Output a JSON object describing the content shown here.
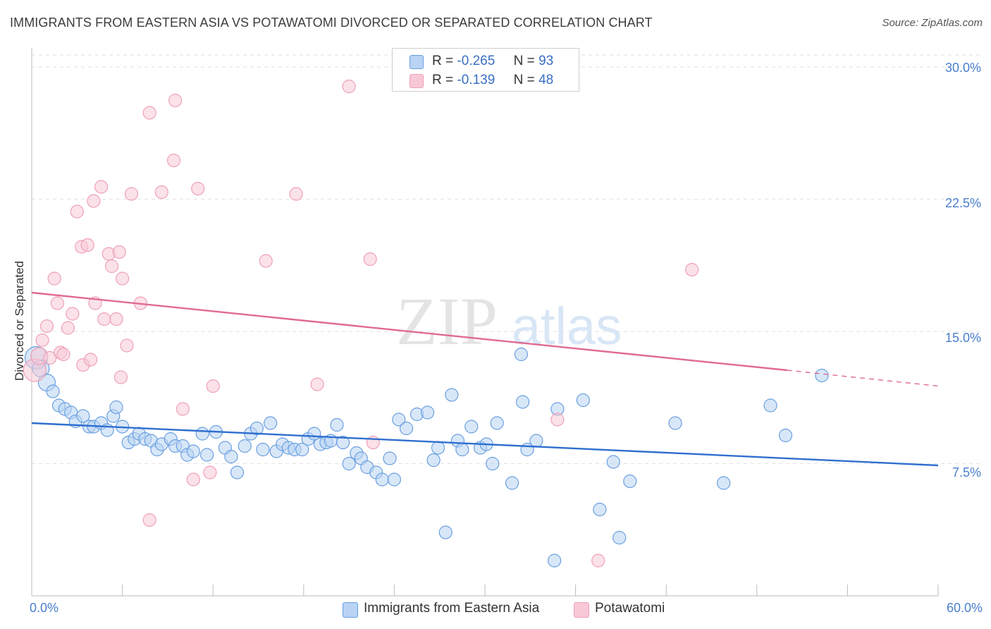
{
  "header": {
    "title": "IMMIGRANTS FROM EASTERN ASIA VS POTAWATOMI DIVORCED OR SEPARATED CORRELATION CHART",
    "source": "Source: ZipAtlas.com"
  },
  "watermark": {
    "zip": "ZIP",
    "atlas": "atlas"
  },
  "legend_top": {
    "rows": [
      {
        "r_label": "R =",
        "r_value": "-0.265",
        "n_label": "N =",
        "n_value": "93"
      },
      {
        "r_label": "R =",
        "r_value": "-0.139",
        "n_label": "N =",
        "n_value": "48"
      }
    ]
  },
  "chart_data": {
    "type": "scatter",
    "title": "IMMIGRANTS FROM EASTERN ASIA VS POTAWATOMI DIVORCED OR SEPARATED CORRELATION CHART",
    "xlabel": "",
    "ylabel": "Divorced or Separated",
    "xlim": [
      0,
      60
    ],
    "ylim": [
      0,
      31
    ],
    "x_tick_labels": [
      "0.0%",
      "60.0%"
    ],
    "y_ticks": [
      7.5,
      15.0,
      22.5,
      30.0
    ],
    "y_tick_labels": [
      "7.5%",
      "15.0%",
      "22.5%",
      "30.0%"
    ],
    "grid": true,
    "legend_position": "bottom-center",
    "series": [
      {
        "name": "Immigrants from Eastern Asia",
        "color": "#6a9fe0",
        "fill": "#b8d3f3",
        "line_color": "#2f6fcf",
        "R": -0.265,
        "N": 93,
        "trend": {
          "x": [
            0,
            60
          ],
          "y": [
            9.8,
            7.4
          ]
        },
        "points": [
          [
            0.3,
            13.5
          ],
          [
            0.6,
            12.9
          ],
          [
            1.0,
            12.1
          ],
          [
            1.4,
            11.6
          ],
          [
            1.8,
            10.8
          ],
          [
            2.2,
            10.6
          ],
          [
            2.6,
            10.4
          ],
          [
            2.9,
            9.9
          ],
          [
            3.4,
            10.2
          ],
          [
            3.8,
            9.6
          ],
          [
            4.1,
            9.6
          ],
          [
            4.6,
            9.8
          ],
          [
            5.0,
            9.4
          ],
          [
            5.4,
            10.2
          ],
          [
            5.6,
            10.7
          ],
          [
            6.0,
            9.6
          ],
          [
            6.4,
            8.7
          ],
          [
            6.8,
            8.9
          ],
          [
            7.1,
            9.2
          ],
          [
            7.5,
            8.9
          ],
          [
            7.9,
            8.8
          ],
          [
            8.3,
            8.3
          ],
          [
            8.6,
            8.6
          ],
          [
            9.2,
            8.9
          ],
          [
            9.5,
            8.5
          ],
          [
            10.0,
            8.5
          ],
          [
            10.3,
            8.0
          ],
          [
            10.7,
            8.2
          ],
          [
            11.3,
            9.2
          ],
          [
            11.6,
            8.0
          ],
          [
            12.2,
            9.3
          ],
          [
            12.8,
            8.4
          ],
          [
            13.2,
            7.9
          ],
          [
            13.6,
            7.0
          ],
          [
            14.1,
            8.5
          ],
          [
            14.5,
            9.2
          ],
          [
            14.9,
            9.5
          ],
          [
            15.3,
            8.3
          ],
          [
            15.8,
            9.8
          ],
          [
            16.2,
            8.2
          ],
          [
            16.6,
            8.6
          ],
          [
            17.0,
            8.4
          ],
          [
            17.4,
            8.3
          ],
          [
            17.9,
            8.3
          ],
          [
            18.3,
            8.9
          ],
          [
            18.7,
            9.2
          ],
          [
            19.1,
            8.6
          ],
          [
            19.5,
            8.7
          ],
          [
            19.8,
            8.8
          ],
          [
            20.2,
            9.7
          ],
          [
            20.6,
            8.7
          ],
          [
            21.0,
            7.5
          ],
          [
            21.5,
            8.1
          ],
          [
            21.8,
            7.8
          ],
          [
            22.2,
            7.3
          ],
          [
            22.8,
            7.0
          ],
          [
            23.2,
            6.6
          ],
          [
            23.7,
            7.8
          ],
          [
            24.0,
            6.6
          ],
          [
            24.3,
            10.0
          ],
          [
            24.8,
            9.5
          ],
          [
            25.5,
            10.3
          ],
          [
            26.2,
            10.4
          ],
          [
            26.6,
            7.7
          ],
          [
            26.9,
            8.4
          ],
          [
            27.4,
            3.6
          ],
          [
            27.8,
            11.4
          ],
          [
            28.2,
            8.8
          ],
          [
            28.5,
            8.3
          ],
          [
            29.1,
            9.6
          ],
          [
            29.7,
            8.4
          ],
          [
            30.1,
            8.6
          ],
          [
            30.5,
            7.5
          ],
          [
            30.8,
            9.8
          ],
          [
            31.8,
            6.4
          ],
          [
            32.4,
            13.7
          ],
          [
            32.5,
            11.0
          ],
          [
            32.8,
            8.3
          ],
          [
            33.4,
            8.8
          ],
          [
            34.6,
            2.0
          ],
          [
            34.8,
            10.6
          ],
          [
            36.5,
            11.1
          ],
          [
            37.6,
            4.9
          ],
          [
            38.5,
            7.6
          ],
          [
            38.9,
            3.3
          ],
          [
            39.6,
            6.5
          ],
          [
            42.6,
            9.8
          ],
          [
            45.8,
            6.4
          ],
          [
            48.9,
            10.8
          ],
          [
            49.9,
            9.1
          ],
          [
            52.3,
            12.5
          ]
        ]
      },
      {
        "name": "Potawatomi",
        "color": "#eea0b8",
        "fill": "#f8c8d6",
        "line_color": "#e06a92",
        "R": -0.139,
        "N": 48,
        "trend": {
          "x": [
            0,
            50
          ],
          "y": [
            17.2,
            12.8
          ]
        },
        "trend_extension": {
          "x": [
            50,
            60
          ],
          "y": [
            12.8,
            11.9
          ]
        },
        "points": [
          [
            0.2,
            12.8
          ],
          [
            0.5,
            13.6
          ],
          [
            0.7,
            14.5
          ],
          [
            1.0,
            15.3
          ],
          [
            1.2,
            13.5
          ],
          [
            1.5,
            18.0
          ],
          [
            1.7,
            16.6
          ],
          [
            1.9,
            13.8
          ],
          [
            2.1,
            13.7
          ],
          [
            2.4,
            15.2
          ],
          [
            2.7,
            16.0
          ],
          [
            3.0,
            21.8
          ],
          [
            3.3,
            19.8
          ],
          [
            3.4,
            13.1
          ],
          [
            3.7,
            19.9
          ],
          [
            3.9,
            13.4
          ],
          [
            4.1,
            22.4
          ],
          [
            4.2,
            16.6
          ],
          [
            4.6,
            23.2
          ],
          [
            4.8,
            15.7
          ],
          [
            5.1,
            19.4
          ],
          [
            5.3,
            18.7
          ],
          [
            5.6,
            15.7
          ],
          [
            5.8,
            19.5
          ],
          [
            5.9,
            12.4
          ],
          [
            6.0,
            18.0
          ],
          [
            6.3,
            14.2
          ],
          [
            6.6,
            22.8
          ],
          [
            7.2,
            16.6
          ],
          [
            7.8,
            27.4
          ],
          [
            7.8,
            4.3
          ],
          [
            8.6,
            22.9
          ],
          [
            9.4,
            24.7
          ],
          [
            9.5,
            28.1
          ],
          [
            10.0,
            10.6
          ],
          [
            10.7,
            6.6
          ],
          [
            11.0,
            23.1
          ],
          [
            11.8,
            7.0
          ],
          [
            12.0,
            11.9
          ],
          [
            15.5,
            19.0
          ],
          [
            17.5,
            22.8
          ],
          [
            18.9,
            12.0
          ],
          [
            21.0,
            28.9
          ],
          [
            22.4,
            19.1
          ],
          [
            22.6,
            8.7
          ],
          [
            34.8,
            10.0
          ],
          [
            37.5,
            2.0
          ],
          [
            43.7,
            18.5
          ]
        ]
      }
    ]
  },
  "x_ticks_text": {
    "min": "0.0%",
    "max": "60.0%"
  }
}
